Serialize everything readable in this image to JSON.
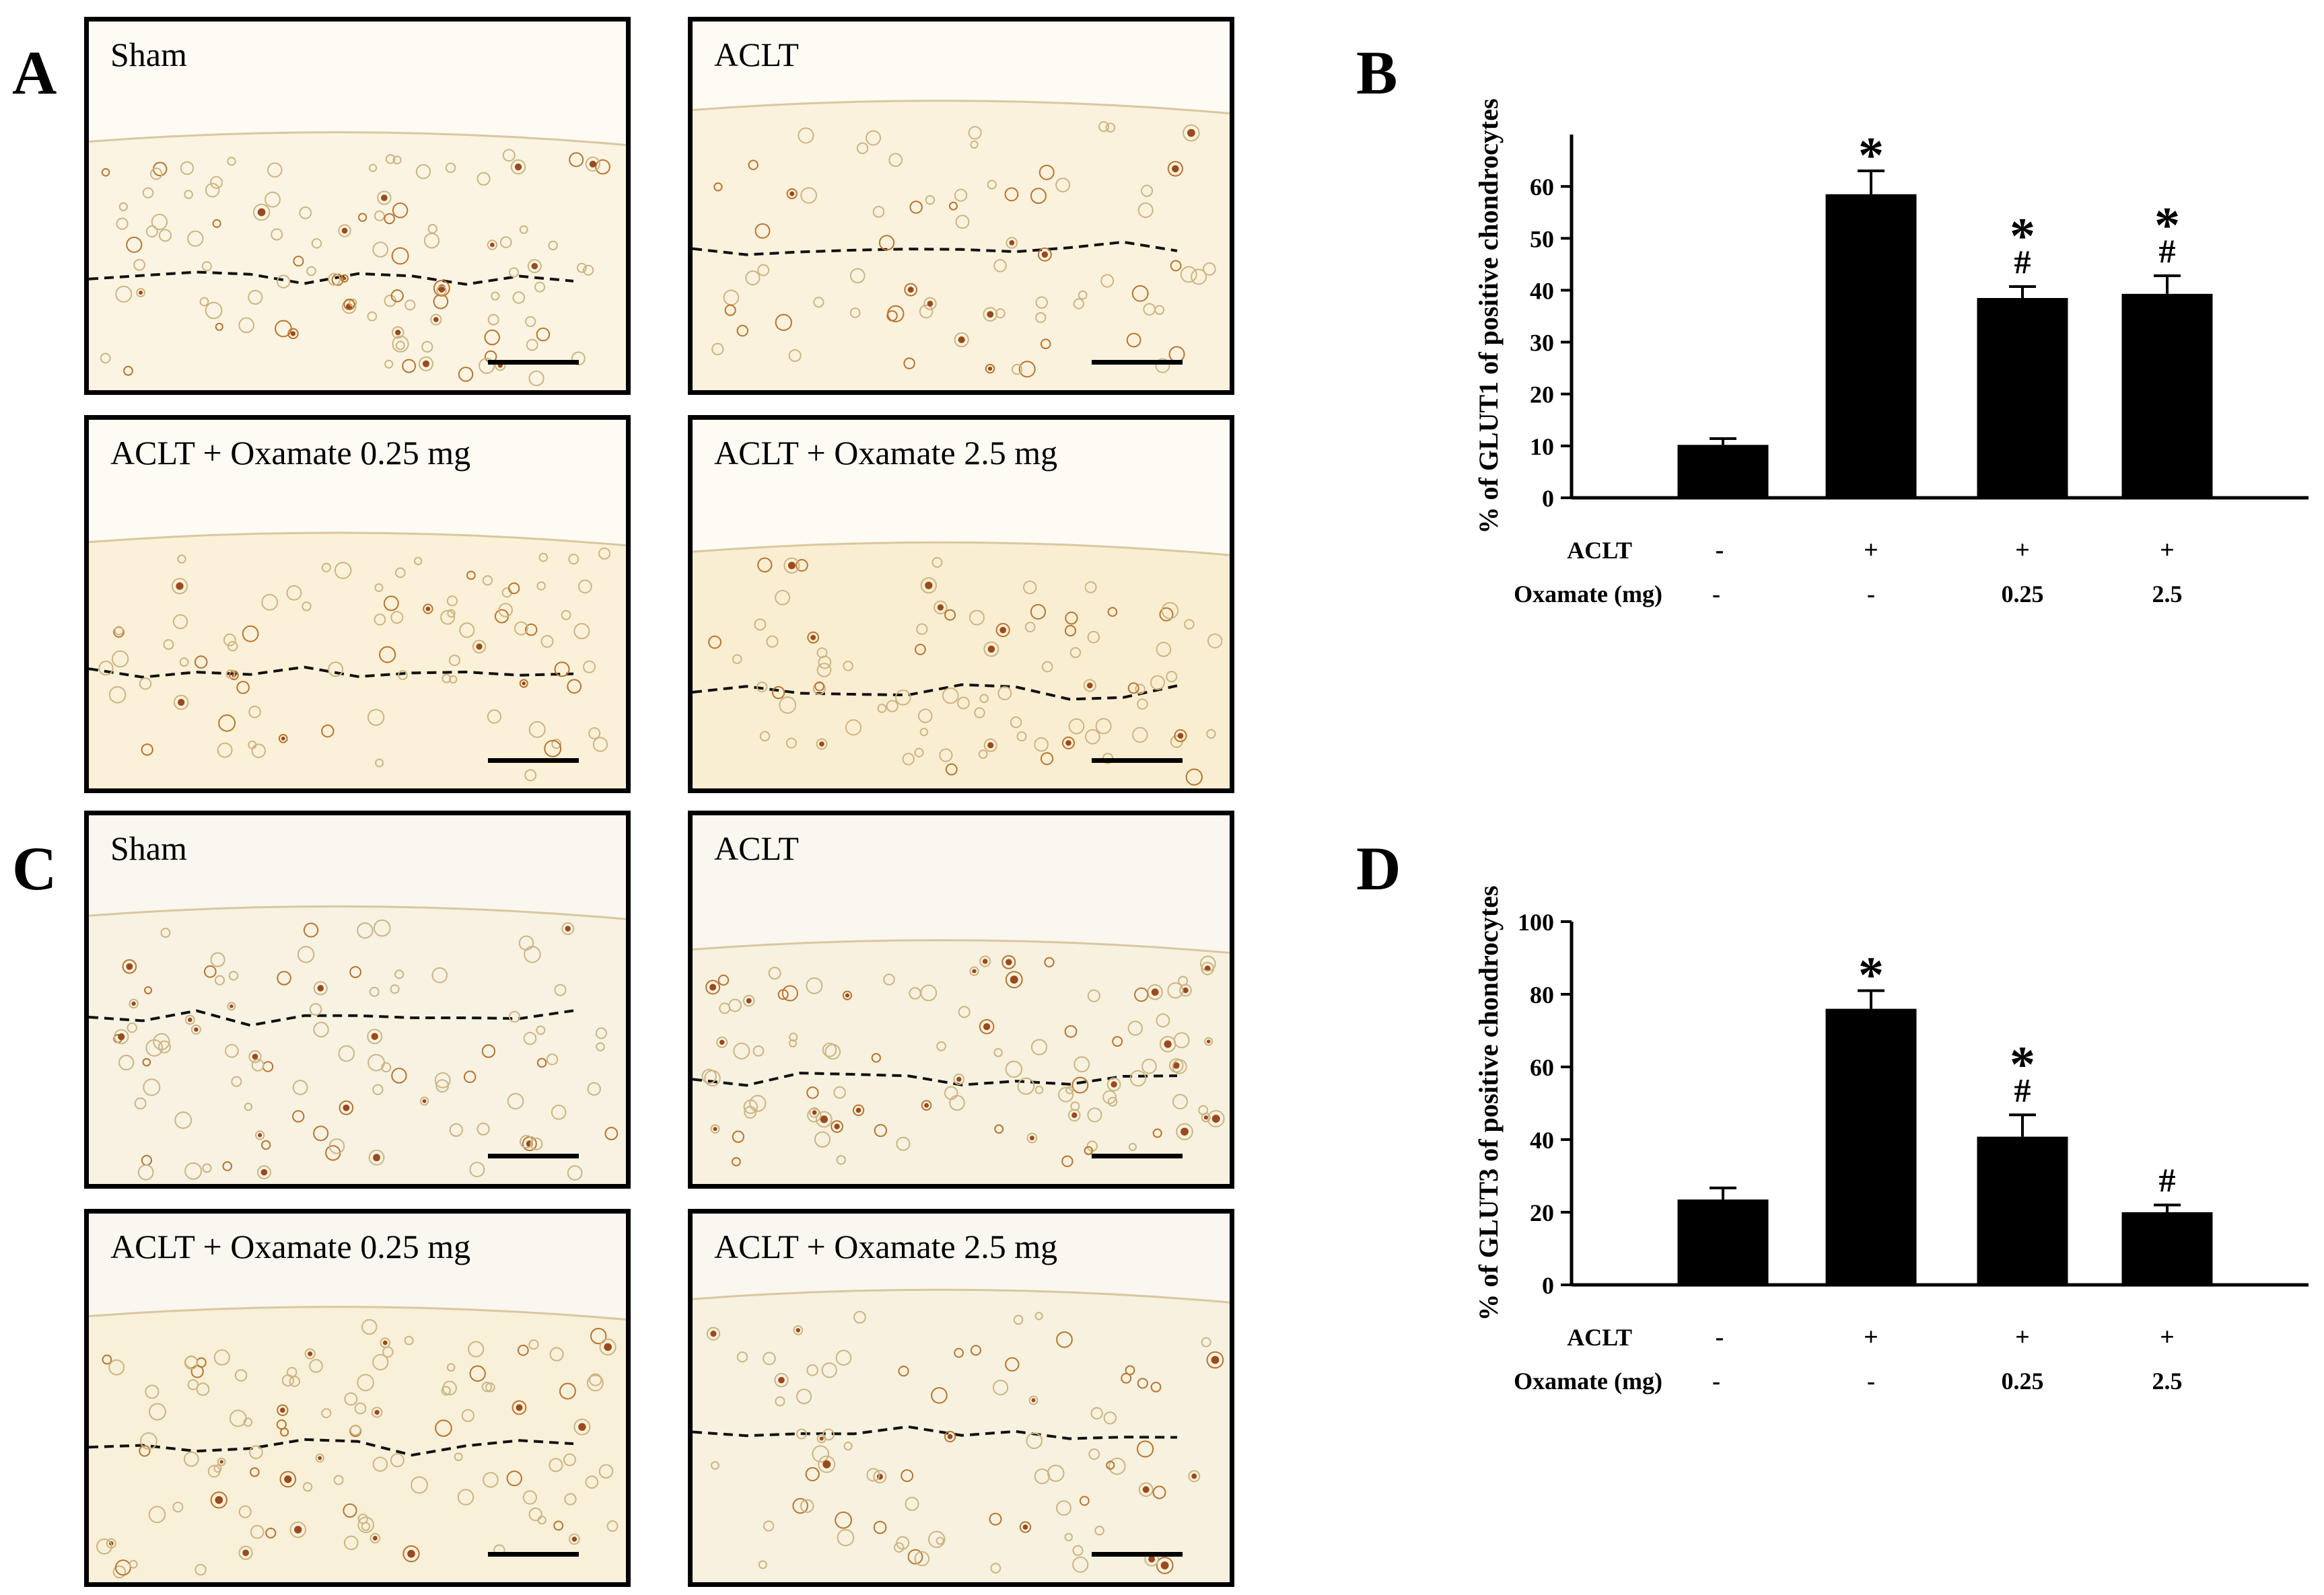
{
  "panel_labels": {
    "a": "A",
    "b": "B",
    "c": "C",
    "d": "D"
  },
  "micrographs": {
    "a": [
      {
        "title": "Sham",
        "tone": "#fbf4e2"
      },
      {
        "title": "ACLT",
        "tone": "#fbf2dd"
      },
      {
        "title": "ACLT + Oxamate 0.25 mg",
        "tone": "#fbf1d8"
      },
      {
        "title": "ACLT + Oxamate 2.5 mg",
        "tone": "#faeed2"
      }
    ],
    "c": [
      {
        "title": "Sham",
        "tone": "#f7f2e2"
      },
      {
        "title": "ACLT",
        "tone": "#f7f1df"
      },
      {
        "title": "ACLT + Oxamate 0.25 mg",
        "tone": "#f8f0d9"
      },
      {
        "title": "ACLT + Oxamate 2.5 mg",
        "tone": "#f7f1df"
      }
    ]
  },
  "chart_data": [
    {
      "type": "bar",
      "title": "",
      "ylabel": "% of GLUT1 of positive chondrocytes",
      "ylim": [
        0,
        70
      ],
      "yticks": [
        0,
        10,
        20,
        30,
        40,
        50,
        60
      ],
      "row_labels": [
        "ACLT",
        "Oxamate (mg)"
      ],
      "categories": [
        {
          "aclt": "-",
          "oxamate": "-"
        },
        {
          "aclt": "+",
          "oxamate": "-"
        },
        {
          "aclt": "+",
          "oxamate": "0.25"
        },
        {
          "aclt": "+",
          "oxamate": "2.5"
        }
      ],
      "values": [
        10.2,
        58.5,
        38.5,
        39.3
      ],
      "errors": [
        1.2,
        4.5,
        2.2,
        3.5
      ],
      "annotations": [
        "",
        "*",
        "*\n#",
        "*\n#"
      ]
    },
    {
      "type": "bar",
      "title": "",
      "ylabel": "% of GLUT3 of positive chondrocytes",
      "ylim": [
        0,
        100
      ],
      "yticks": [
        0,
        20,
        40,
        60,
        80,
        100
      ],
      "row_labels": [
        "ACLT",
        "Oxamate (mg)"
      ],
      "categories": [
        {
          "aclt": "-",
          "oxamate": "-"
        },
        {
          "aclt": "+",
          "oxamate": "-"
        },
        {
          "aclt": "+",
          "oxamate": "0.25"
        },
        {
          "aclt": "+",
          "oxamate": "2.5"
        }
      ],
      "values": [
        23.5,
        76,
        40.8,
        20
      ],
      "errors": [
        3.2,
        5,
        6,
        2
      ],
      "annotations": [
        "",
        "*",
        "*\n#",
        "#"
      ]
    }
  ]
}
